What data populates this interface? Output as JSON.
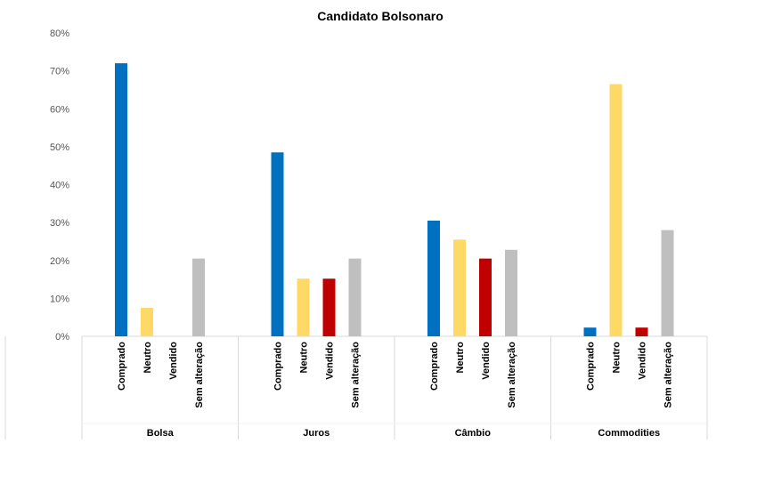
{
  "chart_data": {
    "type": "bar",
    "title": "Candidato Bolsonaro",
    "xlabel": "",
    "ylabel": "",
    "ylim": [
      0,
      0.8
    ],
    "y_ticks": [
      "0%",
      "10%",
      "20%",
      "30%",
      "40%",
      "50%",
      "60%",
      "70%",
      "80%"
    ],
    "grid": false,
    "groups": [
      {
        "name": "Bolsa",
        "bars": [
          {
            "label": "Comprado",
            "value": 0.72,
            "color": "#0070C0"
          },
          {
            "label": "Neutro",
            "value": 0.075,
            "color": "#FFD966"
          },
          {
            "label": "Vendido",
            "value": 0.0,
            "color": "#C00000"
          },
          {
            "label": "Sem alteração",
            "value": 0.205,
            "color": "#BFBFBF"
          }
        ]
      },
      {
        "name": "Juros",
        "bars": [
          {
            "label": "Comprado",
            "value": 0.485,
            "color": "#0070C0"
          },
          {
            "label": "Neutro",
            "value": 0.152,
            "color": "#FFD966"
          },
          {
            "label": "Vendido",
            "value": 0.152,
            "color": "#C00000"
          },
          {
            "label": "Sem alteração",
            "value": 0.205,
            "color": "#BFBFBF"
          }
        ]
      },
      {
        "name": "Câmbio",
        "bars": [
          {
            "label": "Comprado",
            "value": 0.305,
            "color": "#0070C0"
          },
          {
            "label": "Neutro",
            "value": 0.255,
            "color": "#FFD966"
          },
          {
            "label": "Vendido",
            "value": 0.205,
            "color": "#C00000"
          },
          {
            "label": "Sem alteração",
            "value": 0.228,
            "color": "#BFBFBF"
          }
        ]
      },
      {
        "name": "Commodities",
        "bars": [
          {
            "label": "Comprado",
            "value": 0.023,
            "color": "#0070C0"
          },
          {
            "label": "Neutro",
            "value": 0.665,
            "color": "#FFD966"
          },
          {
            "label": "Vendido",
            "value": 0.023,
            "color": "#C00000"
          },
          {
            "label": "Sem alteração",
            "value": 0.28,
            "color": "#BFBFBF"
          }
        ]
      }
    ]
  }
}
